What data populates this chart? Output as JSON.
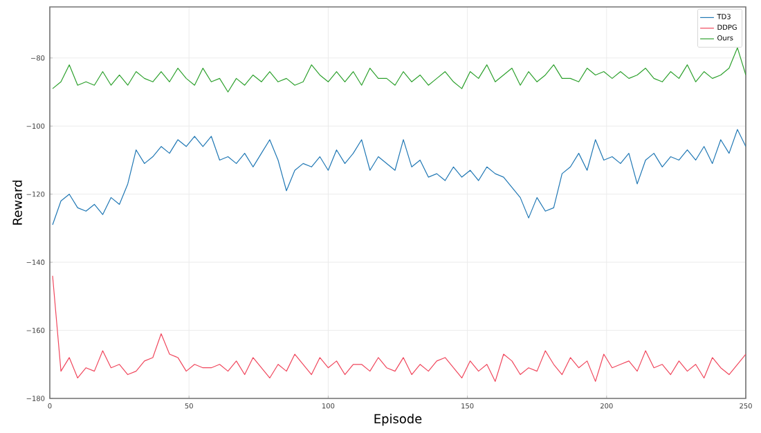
{
  "chart_data": {
    "type": "line",
    "xlabel": "Episode",
    "ylabel": "Reward",
    "x": [
      1,
      4,
      7,
      10,
      13,
      16,
      19,
      22,
      25,
      28,
      31,
      34,
      37,
      40,
      43,
      46,
      49,
      52,
      55,
      58,
      61,
      64,
      67,
      70,
      73,
      76,
      79,
      82,
      85,
      88,
      91,
      94,
      97,
      100,
      103,
      106,
      109,
      112,
      115,
      118,
      121,
      124,
      127,
      130,
      133,
      136,
      139,
      142,
      145,
      148,
      151,
      154,
      157,
      160,
      163,
      166,
      169,
      172,
      175,
      178,
      181,
      184,
      187,
      190,
      193,
      196,
      199,
      202,
      205,
      208,
      211,
      214,
      217,
      220,
      223,
      226,
      229,
      232,
      235,
      238,
      241,
      244,
      247,
      250
    ],
    "series": [
      {
        "name": "TD3",
        "color": "#1f77b4",
        "values": [
          -129,
          -122,
          -120,
          -124,
          -125,
          -123,
          -126,
          -121,
          -123,
          -117,
          -107,
          -111,
          -109,
          -106,
          -108,
          -104,
          -106,
          -103,
          -106,
          -103,
          -110,
          -109,
          -111,
          -108,
          -112,
          -108,
          -104,
          -110,
          -119,
          -113,
          -111,
          -112,
          -109,
          -113,
          -107,
          -111,
          -108,
          -104,
          -113,
          -109,
          -111,
          -113,
          -104,
          -112,
          -110,
          -115,
          -114,
          -116,
          -112,
          -115,
          -113,
          -116,
          -112,
          -114,
          -115,
          -118,
          -121,
          -127,
          -121,
          -125,
          -124,
          -114,
          -112,
          -108,
          -113,
          -104,
          -110,
          -109,
          -111,
          -108,
          -117,
          -110,
          -108,
          -112,
          -109,
          -110,
          -107,
          -110,
          -106,
          -111,
          -104,
          -108,
          -101,
          -106
        ]
      },
      {
        "name": "DDPG",
        "color": "#f0465c",
        "values": [
          -144,
          -172,
          -168,
          -174,
          -171,
          -172,
          -166,
          -171,
          -170,
          -173,
          -172,
          -169,
          -168,
          -161,
          -167,
          -168,
          -172,
          -170,
          -171,
          -171,
          -170,
          -172,
          -169,
          -173,
          -168,
          -171,
          -174,
          -170,
          -172,
          -167,
          -170,
          -173,
          -168,
          -171,
          -169,
          -173,
          -170,
          -170,
          -172,
          -168,
          -171,
          -172,
          -168,
          -173,
          -170,
          -172,
          -169,
          -168,
          -171,
          -174,
          -169,
          -172,
          -170,
          -175,
          -167,
          -169,
          -173,
          -171,
          -172,
          -166,
          -170,
          -173,
          -168,
          -171,
          -169,
          -175,
          -167,
          -171,
          -170,
          -169,
          -172,
          -166,
          -171,
          -170,
          -173,
          -169,
          -172,
          -170,
          -174,
          -168,
          -171,
          -173,
          -170,
          -167
        ]
      },
      {
        "name": "Ours",
        "color": "#2ca02c",
        "values": [
          -89,
          -87,
          -82,
          -88,
          -87,
          -88,
          -84,
          -88,
          -85,
          -88,
          -84,
          -86,
          -87,
          -84,
          -87,
          -83,
          -86,
          -88,
          -83,
          -87,
          -86,
          -90,
          -86,
          -88,
          -85,
          -87,
          -84,
          -87,
          -86,
          -88,
          -87,
          -82,
          -85,
          -87,
          -84,
          -87,
          -84,
          -88,
          -83,
          -86,
          -86,
          -88,
          -84,
          -87,
          -85,
          -88,
          -86,
          -84,
          -87,
          -89,
          -84,
          -86,
          -82,
          -87,
          -85,
          -83,
          -88,
          -84,
          -87,
          -85,
          -82,
          -86,
          -86,
          -87,
          -83,
          -85,
          -84,
          -86,
          -84,
          -86,
          -85,
          -83,
          -86,
          -87,
          -84,
          -86,
          -82,
          -87,
          -84,
          -86,
          -85,
          -83,
          -77,
          -85
        ]
      }
    ],
    "xlim": [
      0,
      250
    ],
    "xticks": [
      0,
      50,
      100,
      150,
      200,
      250
    ],
    "ylim": [
      -180,
      -65
    ],
    "yticks": [
      {
        "value": -180,
        "label": "−180"
      },
      {
        "value": -160,
        "label": "−160"
      },
      {
        "value": -140,
        "label": "−140"
      },
      {
        "value": -120,
        "label": "−120"
      },
      {
        "value": -100,
        "label": "−100"
      },
      {
        "value": -80,
        "label": "−80"
      }
    ],
    "grid": true,
    "legend": "top right",
    "marker": "none",
    "line_style": "solid"
  }
}
